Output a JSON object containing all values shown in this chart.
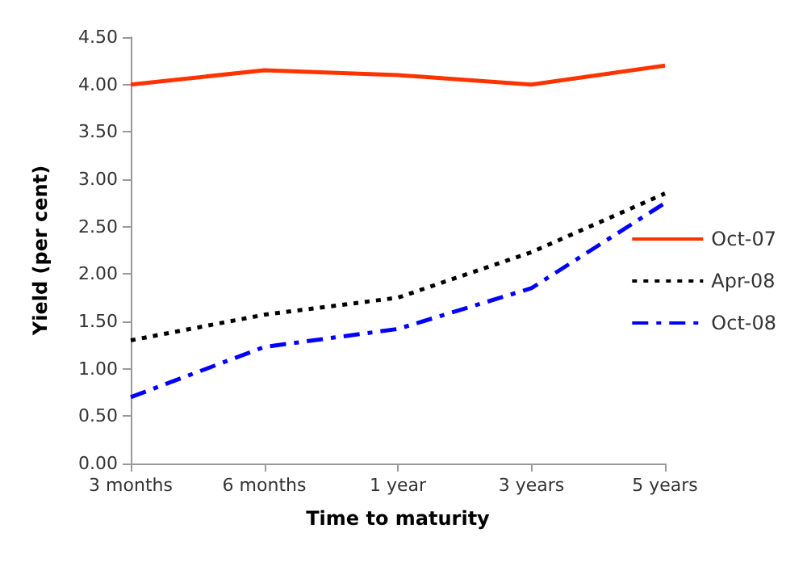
{
  "chart_data": {
    "type": "line",
    "xlabel": "Time to maturity",
    "ylabel": "Yield (per cent)",
    "categories": [
      "3 months",
      "6 months",
      "1 year",
      "3 years",
      "5 years"
    ],
    "series": [
      {
        "name": "Oct-07",
        "color": "#ff3300",
        "line_style": "solid",
        "values": [
          4.0,
          4.15,
          4.1,
          4.0,
          4.2
        ]
      },
      {
        "name": "Apr-08",
        "color": "#000000",
        "line_style": "dotted",
        "values": [
          1.3,
          1.57,
          1.75,
          2.23,
          2.85
        ]
      },
      {
        "name": "Oct-08",
        "color": "#0000ff",
        "line_style": "dashed",
        "values": [
          0.7,
          1.23,
          1.42,
          1.85,
          2.75
        ]
      }
    ],
    "ylim": [
      0,
      4.5
    ],
    "yticks": [
      {
        "value": 0,
        "label": "0.00"
      },
      {
        "value": 0.5,
        "label": "0.50"
      },
      {
        "value": 1,
        "label": "1.00"
      },
      {
        "value": 1.5,
        "label": "1.50"
      },
      {
        "value": 2,
        "label": "2.00"
      },
      {
        "value": 2.5,
        "label": "2.50"
      },
      {
        "value": 3,
        "label": "3.00"
      },
      {
        "value": 3.5,
        "label": "3.50"
      },
      {
        "value": 4,
        "label": "4.00"
      },
      {
        "value": 4.5,
        "label": "4.50"
      }
    ],
    "legend": "right",
    "grid": false,
    "marker": "none"
  }
}
